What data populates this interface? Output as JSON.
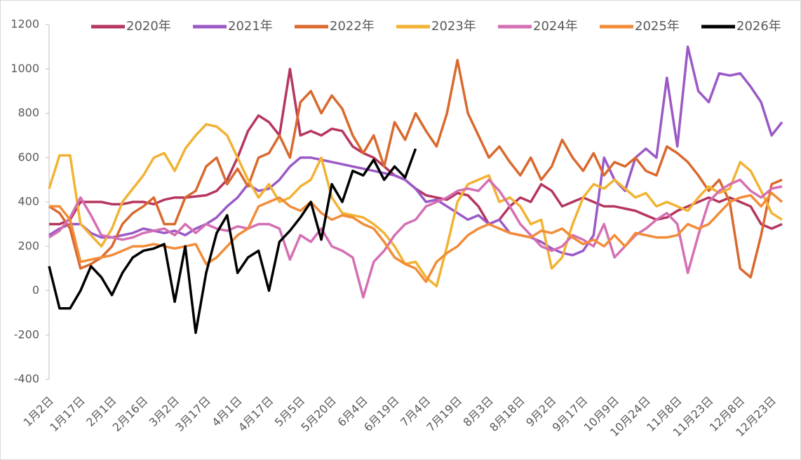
{
  "chart_data": {
    "type": "line",
    "categories": [
      "1月2日",
      null,
      null,
      "1月17日",
      null,
      null,
      "2月1日",
      null,
      null,
      "2月16日",
      null,
      null,
      "3月2日",
      null,
      null,
      "3月17日",
      null,
      null,
      "4月1日",
      null,
      null,
      "4月17日",
      null,
      null,
      "5月5日",
      null,
      null,
      "5月20日",
      null,
      null,
      "6月4日",
      null,
      null,
      "6月19日",
      null,
      null,
      "7月4日",
      null,
      null,
      "7月19日",
      null,
      null,
      "8月3日",
      null,
      null,
      "8月18日",
      null,
      null,
      "9月2日",
      null,
      null,
      "9月17日",
      null,
      null,
      "10月9日",
      null,
      null,
      "10月24日",
      null,
      null,
      "11月8日",
      null,
      null,
      "11月23日",
      null,
      null,
      "12月8日",
      null,
      null,
      "12月23日",
      null
    ],
    "ylim": [
      -400,
      1200
    ],
    "yticks": [
      -400,
      -200,
      0,
      200,
      400,
      600,
      800,
      1000,
      1200
    ],
    "legend": "top",
    "grid": false,
    "series": [
      {
        "name": "2020年",
        "color": "#b5365f",
        "values": [
          300,
          300,
          320,
          400,
          400,
          400,
          390,
          390,
          400,
          400,
          390,
          410,
          420,
          420,
          425,
          430,
          450,
          500,
          600,
          720,
          790,
          760,
          700,
          1000,
          700,
          720,
          700,
          730,
          720,
          650,
          620,
          600,
          560,
          520,
          500,
          460,
          430,
          420,
          410,
          440,
          430,
          380,
          300,
          320,
          380,
          420,
          400,
          480,
          450,
          380,
          400,
          420,
          400,
          380,
          380,
          370,
          360,
          340,
          320,
          330,
          360,
          380,
          400,
          420,
          400,
          420,
          400,
          380,
          300,
          280,
          300
        ]
      },
      {
        "name": "2021年",
        "color": "#9b59c6",
        "values": [
          250,
          280,
          300,
          300,
          260,
          240,
          240,
          250,
          260,
          280,
          270,
          260,
          270,
          250,
          280,
          300,
          330,
          380,
          420,
          480,
          450,
          460,
          500,
          560,
          600,
          600,
          590,
          580,
          570,
          560,
          550,
          540,
          530,
          520,
          500,
          460,
          400,
          410,
          380,
          350,
          320,
          340,
          300,
          320,
          260,
          250,
          240,
          220,
          190,
          170,
          160,
          180,
          250,
          600,
          500,
          450,
          600,
          640,
          600,
          960,
          650,
          1100,
          900,
          850,
          980,
          970,
          980,
          920,
          850,
          700,
          760
        ]
      },
      {
        "name": "2022年",
        "color": "#d9692e",
        "values": [
          380,
          350,
          280,
          100,
          120,
          150,
          200,
          300,
          350,
          380,
          420,
          300,
          300,
          420,
          450,
          560,
          600,
          480,
          550,
          470,
          600,
          620,
          700,
          600,
          850,
          900,
          800,
          880,
          820,
          700,
          620,
          700,
          560,
          760,
          680,
          800,
          720,
          650,
          800,
          1040,
          800,
          700,
          600,
          650,
          580,
          520,
          600,
          500,
          560,
          680,
          600,
          540,
          620,
          520,
          580,
          560,
          600,
          540,
          520,
          650,
          620,
          580,
          520,
          450,
          500,
          400,
          100,
          60,
          250,
          480,
          500
        ]
      },
      {
        "name": "2023年",
        "color": "#f2b233",
        "values": [
          460,
          610,
          610,
          300,
          250,
          200,
          280,
          400,
          460,
          520,
          600,
          620,
          540,
          640,
          700,
          750,
          740,
          700,
          600,
          500,
          420,
          480,
          400,
          420,
          470,
          500,
          600,
          420,
          350,
          340,
          330,
          300,
          260,
          200,
          120,
          130,
          60,
          20,
          200,
          400,
          480,
          500,
          520,
          400,
          420,
          380,
          300,
          320,
          100,
          150,
          300,
          420,
          480,
          460,
          500,
          460,
          420,
          440,
          380,
          400,
          380,
          360,
          420,
          470,
          440,
          460,
          580,
          540,
          450,
          350,
          320
        ]
      },
      {
        "name": "2024年",
        "color": "#d46fb3",
        "values": [
          240,
          270,
          330,
          420,
          340,
          250,
          240,
          230,
          240,
          260,
          270,
          280,
          250,
          300,
          260,
          300,
          280,
          270,
          290,
          280,
          300,
          300,
          280,
          140,
          250,
          220,
          280,
          200,
          180,
          150,
          -30,
          130,
          180,
          250,
          300,
          320,
          380,
          400,
          420,
          450,
          460,
          450,
          500,
          450,
          380,
          300,
          250,
          200,
          180,
          200,
          250,
          230,
          200,
          300,
          150,
          200,
          250,
          280,
          320,
          350,
          300,
          80,
          250,
          400,
          450,
          480,
          500,
          450,
          420,
          460,
          470
        ]
      },
      {
        "name": "2025年",
        "color": "#f28c38",
        "values": [
          380,
          380,
          320,
          130,
          140,
          150,
          160,
          180,
          200,
          200,
          210,
          200,
          190,
          200,
          210,
          120,
          150,
          200,
          250,
          280,
          380,
          400,
          420,
          380,
          360,
          400,
          350,
          320,
          340,
          330,
          300,
          280,
          220,
          150,
          120,
          100,
          40,
          130,
          170,
          200,
          250,
          280,
          300,
          280,
          260,
          250,
          240,
          270,
          260,
          280,
          240,
          210,
          230,
          200,
          250,
          200,
          260,
          250,
          240,
          240,
          250,
          300,
          280,
          300,
          350,
          400,
          420,
          430,
          380,
          440,
          400
        ]
      },
      {
        "name": "2026年",
        "color": "#000000",
        "values": [
          110,
          -80,
          -80,
          0,
          110,
          60,
          -20,
          80,
          150,
          180,
          190,
          210,
          -50,
          200,
          -190,
          80,
          260,
          340,
          80,
          150,
          180,
          0,
          220,
          270,
          330,
          400,
          230,
          480,
          400,
          540,
          520,
          590,
          500,
          560,
          510,
          640,
          null,
          null,
          null,
          null,
          null,
          null,
          null,
          null,
          null,
          null,
          null,
          null,
          null,
          null,
          null,
          null,
          null,
          null,
          null,
          null,
          null,
          null,
          null,
          null,
          null,
          null,
          null,
          null,
          null,
          null,
          null,
          null,
          null,
          null,
          null
        ]
      }
    ]
  }
}
